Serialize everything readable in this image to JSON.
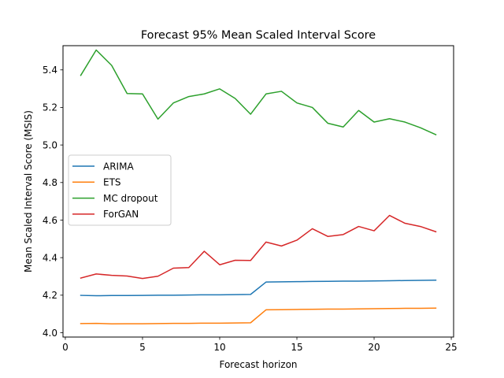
{
  "chart_data": {
    "type": "line",
    "title": "Forecast 95% Mean Scaled Interval Score",
    "xlabel": "Forecast horizon",
    "ylabel": "Mean Scaled Interval Score (MSIS)",
    "xlim": [
      -0.15,
      25.15
    ],
    "ylim": [
      3.977,
      5.529
    ],
    "xticks": [
      0,
      5,
      10,
      15,
      20,
      25
    ],
    "yticks": [
      4.0,
      4.2,
      4.4,
      4.6,
      4.8,
      5.0,
      5.2,
      5.4
    ],
    "xtick_labels": [
      "0",
      "5",
      "10",
      "15",
      "20",
      "25"
    ],
    "ytick_labels": [
      "4.0",
      "4.2",
      "4.4",
      "4.6",
      "4.8",
      "5.0",
      "5.2",
      "5.4"
    ],
    "grid": false,
    "legend_position": "center-left",
    "x": [
      1,
      2,
      3,
      4,
      5,
      6,
      7,
      8,
      9,
      10,
      11,
      12,
      13,
      14,
      15,
      16,
      17,
      18,
      19,
      20,
      21,
      22,
      23,
      24
    ],
    "series": [
      {
        "name": "ARIMA",
        "color": "#1f77b4",
        "values": [
          4.199,
          4.197,
          4.198,
          4.198,
          4.199,
          4.2,
          4.2,
          4.201,
          4.202,
          4.202,
          4.203,
          4.204,
          4.27,
          4.271,
          4.272,
          4.273,
          4.274,
          4.275,
          4.275,
          4.276,
          4.277,
          4.278,
          4.279,
          4.28
        ]
      },
      {
        "name": "ETS",
        "color": "#ff7f0e",
        "values": [
          4.049,
          4.05,
          4.047,
          4.048,
          4.048,
          4.049,
          4.05,
          4.05,
          4.051,
          4.051,
          4.052,
          4.053,
          4.122,
          4.123,
          4.124,
          4.125,
          4.126,
          4.126,
          4.127,
          4.128,
          4.129,
          4.13,
          4.13,
          4.131
        ]
      },
      {
        "name": "MC dropout",
        "color": "#2ca02c",
        "values": [
          5.371,
          5.506,
          5.424,
          5.274,
          5.272,
          5.138,
          5.224,
          5.258,
          5.272,
          5.299,
          5.248,
          5.164,
          5.272,
          5.286,
          5.224,
          5.2,
          5.116,
          5.096,
          5.184,
          5.122,
          5.14,
          5.122,
          5.092,
          5.055
        ]
      },
      {
        "name": "ForGAN",
        "color": "#d62728",
        "values": [
          4.291,
          4.313,
          4.306,
          4.302,
          4.289,
          4.301,
          4.344,
          4.347,
          4.434,
          4.362,
          4.386,
          4.385,
          4.483,
          4.462,
          4.493,
          4.554,
          4.513,
          4.523,
          4.566,
          4.543,
          4.625,
          4.583,
          4.566,
          4.538
        ]
      }
    ]
  }
}
